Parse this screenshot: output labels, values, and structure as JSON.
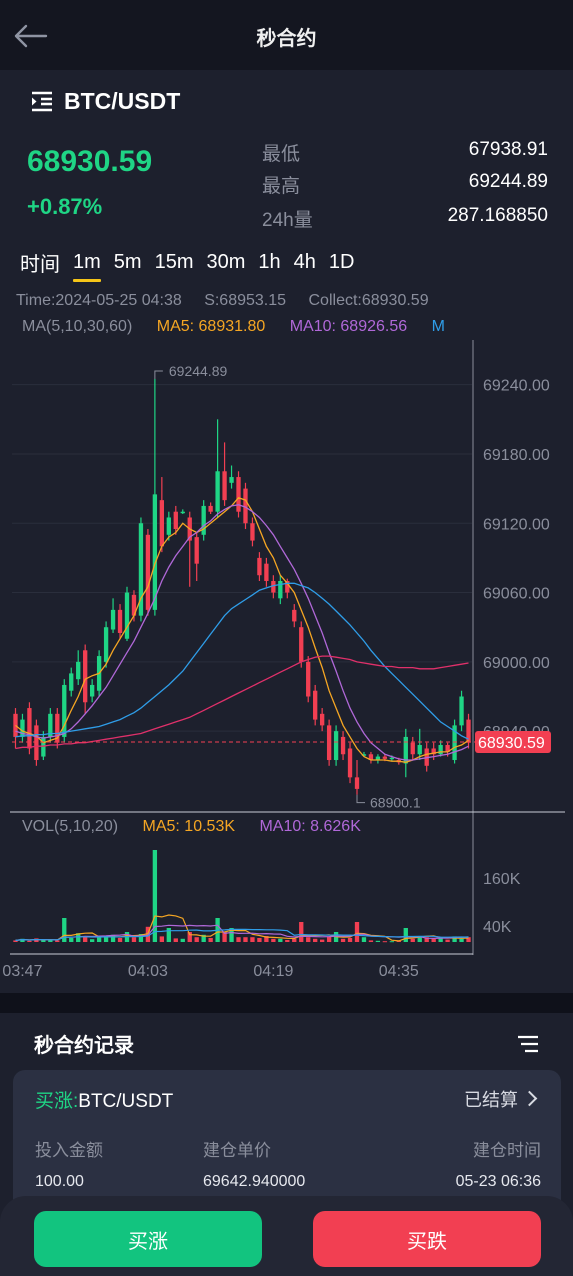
{
  "header": {
    "title": "秒合约"
  },
  "symbol": {
    "name": "BTC/USDT"
  },
  "ticker": {
    "price": "68930.59",
    "change": "+0.87%",
    "low_label": "最低",
    "low_value": "67938.91",
    "high_label": "最高",
    "high_value": "69244.89",
    "vol_label": "24h量",
    "vol_value": "287.168850"
  },
  "tabs": [
    "时间",
    "1m",
    "5m",
    "15m",
    "30m",
    "1h",
    "4h",
    "1D"
  ],
  "active_tab": "1m",
  "chart_info": {
    "time": "Time:2024-05-25 04:38",
    "start": "S:68953.15",
    "collect": "Collect:68930.59"
  },
  "ma_legend": {
    "label": "MA(5,10,30,60)",
    "ma5": "MA5: 68931.80",
    "ma10": "MA10: 68926.56",
    "ma30": "M"
  },
  "vol_legend": {
    "label": "VOL(5,10,20)",
    "ma5": "MA5: 10.53K",
    "ma10": "MA10: 8.626K"
  },
  "colors": {
    "up": "#1fd585",
    "down": "#f23f52",
    "ma5": "#f5a623",
    "ma10": "#b068d8",
    "ma30": "#2f9de8",
    "ma60": "#e0306a",
    "grid": "#2a2e3c"
  },
  "chart_data": {
    "type": "candlestick",
    "price_axis": {
      "ticks": [
        "69240.00",
        "69180.00",
        "69120.00",
        "69060.00",
        "69000.00",
        "68940.00"
      ],
      "range": [
        68870,
        69270
      ]
    },
    "current_price_label": "68930.59",
    "max_label": "69244.89",
    "min_label": "68900.1",
    "time_labels": [
      "03:47",
      "04:03",
      "04:19",
      "04:35"
    ],
    "vol_axis": {
      "ticks": [
        "160K",
        "40K"
      ],
      "range": [
        0,
        260
      ]
    },
    "candles": [
      [
        68955,
        68935,
        68925,
        68960,
        4
      ],
      [
        68935,
        68950,
        68930,
        68955,
        8
      ],
      [
        68960,
        68925,
        68920,
        68965,
        3
      ],
      [
        68945,
        68915,
        68910,
        68950,
        9
      ],
      [
        68918,
        68935,
        68915,
        68940,
        5
      ],
      [
        68935,
        68955,
        68930,
        68960,
        4
      ],
      [
        68955,
        68930,
        68925,
        68960,
        4
      ],
      [
        68935,
        68980,
        68930,
        68985,
        60
      ],
      [
        68975,
        68990,
        68970,
        68995,
        10
      ],
      [
        68985,
        69000,
        68980,
        69010,
        22
      ],
      [
        69010,
        68965,
        68955,
        69015,
        14
      ],
      [
        68970,
        68980,
        68965,
        68985,
        7
      ],
      [
        68975,
        69005,
        68970,
        69010,
        12
      ],
      [
        69000,
        69030,
        68995,
        69035,
        15
      ],
      [
        69028,
        69045,
        69025,
        69055,
        18
      ],
      [
        69045,
        69025,
        69020,
        69050,
        10
      ],
      [
        69020,
        69060,
        69018,
        69065,
        25
      ],
      [
        69058,
        69040,
        69035,
        69062,
        12
      ],
      [
        69040,
        69120,
        69035,
        69125,
        20
      ],
      [
        69110,
        69045,
        69040,
        69115,
        38
      ],
      [
        69045,
        69145,
        69040,
        69244.89,
        230
      ],
      [
        69140,
        69100,
        69095,
        69160,
        14
      ],
      [
        69110,
        69125,
        69105,
        69130,
        35
      ],
      [
        69130,
        69115,
        69110,
        69135,
        9
      ],
      [
        69130,
        69130,
        69128,
        69132,
        8
      ],
      [
        69125,
        69105,
        69065,
        69130,
        25
      ],
      [
        69108,
        69085,
        69070,
        69112,
        12
      ],
      [
        69110,
        69135,
        69105,
        69140,
        18
      ],
      [
        69135,
        69130,
        69128,
        69138,
        10
      ],
      [
        69130,
        69165,
        69125,
        69210,
        60
      ],
      [
        69165,
        69140,
        69135,
        69190,
        25
      ],
      [
        69155,
        69160,
        69150,
        69170,
        35
      ],
      [
        69160,
        69130,
        69125,
        69165,
        12
      ],
      [
        69150,
        69120,
        69115,
        69155,
        12
      ],
      [
        69120,
        69105,
        69100,
        69125,
        12
      ],
      [
        69090,
        69075,
        69070,
        69095,
        10
      ],
      [
        69085,
        69070,
        69065,
        69090,
        15
      ],
      [
        69070,
        69060,
        69055,
        69075,
        8
      ],
      [
        69055,
        69070,
        69050,
        69075,
        8
      ],
      [
        69070,
        69060,
        69055,
        69072,
        5
      ],
      [
        69045,
        69035,
        69030,
        69050,
        8
      ],
      [
        69030,
        69000,
        68995,
        69035,
        50
      ],
      [
        69000,
        68970,
        68965,
        69005,
        12
      ],
      [
        68975,
        68950,
        68945,
        68980,
        8
      ],
      [
        68955,
        68945,
        68940,
        68960,
        6
      ],
      [
        68945,
        68915,
        68910,
        68950,
        14
      ],
      [
        68915,
        68940,
        68910,
        68945,
        25
      ],
      [
        68935,
        68920,
        68915,
        68940,
        8
      ],
      [
        68925,
        68900,
        68895,
        68930,
        10
      ],
      [
        68900,
        68890,
        68885,
        68915,
        50
      ],
      [
        68920,
        68920,
        68918,
        68922,
        12
      ],
      [
        68920,
        68915,
        68912,
        68922,
        4
      ],
      [
        68915,
        68918,
        68912,
        68920,
        3
      ],
      [
        68918,
        68916,
        68914,
        68920,
        2
      ],
      [
        68916,
        68917,
        68914,
        68919,
        2
      ],
      [
        68915,
        68913,
        68911,
        68917,
        3
      ],
      [
        68912,
        68935,
        68900.1,
        68942,
        35
      ],
      [
        68930,
        68920,
        68915,
        68935,
        8
      ],
      [
        68920,
        68928,
        68915,
        68942,
        14
      ],
      [
        68925,
        68910,
        68905,
        68930,
        12
      ],
      [
        68925,
        68920,
        68915,
        68930,
        8
      ],
      [
        68920,
        68928,
        68918,
        68932,
        10
      ],
      [
        68928,
        68922,
        68918,
        68930,
        6
      ],
      [
        68915,
        68945,
        68912,
        68950,
        14
      ],
      [
        68945,
        68970,
        68940,
        68975,
        8
      ],
      [
        68950,
        68930,
        68925,
        68955,
        12
      ]
    ],
    "ma_series": {
      "ma5": [
        68945,
        68940,
        68938,
        68936,
        68930,
        68932,
        68934,
        68945,
        68958,
        68970,
        68985,
        68988,
        68990,
        68998,
        69010,
        69020,
        69030,
        69040,
        69055,
        69065,
        69085,
        69100,
        69108,
        69112,
        69120,
        69115,
        69112,
        69115,
        69120,
        69125,
        69130,
        69135,
        69142,
        69140,
        69130,
        69115,
        69100,
        69090,
        69075,
        69068,
        69060,
        69045,
        69030,
        69012,
        68995,
        68975,
        68960,
        68945,
        68935,
        68925,
        68918,
        68915,
        68915,
        68915,
        68914,
        68914,
        68913,
        68915,
        68918,
        68920,
        68921,
        68922,
        68922,
        68926,
        68928,
        68932
      ],
      "ma10": [
        68940,
        68938,
        68937,
        68935,
        68934,
        68935,
        68936,
        68938,
        68942,
        68948,
        68955,
        68962,
        68970,
        68978,
        68988,
        68998,
        69008,
        69018,
        69030,
        69042,
        69055,
        69070,
        69082,
        69092,
        69100,
        69108,
        69112,
        69118,
        69122,
        69128,
        69132,
        69135,
        69136,
        69134,
        69130,
        69125,
        69118,
        69110,
        69100,
        69090,
        69080,
        69068,
        69055,
        69040,
        69025,
        69008,
        68992,
        68975,
        68960,
        68948,
        68938,
        68930,
        68925,
        68920,
        68918,
        68916,
        68915,
        68915,
        68916,
        68917,
        68918,
        68919,
        68920,
        68922,
        68924,
        68927
      ],
      "ma30": [
        68935,
        68936,
        68936,
        68937,
        68937,
        68938,
        68938,
        68939,
        68940,
        68941,
        68942,
        68943,
        68944,
        68946,
        68948,
        68950,
        68953,
        68956,
        68960,
        68965,
        68970,
        68975,
        68980,
        68986,
        68992,
        69000,
        69008,
        69016,
        69024,
        69032,
        69040,
        69046,
        69050,
        69054,
        69058,
        69062,
        69064,
        69066,
        69067,
        69068,
        69068,
        69066,
        69064,
        69060,
        69055,
        69050,
        69044,
        69038,
        69032,
        69025,
        69018,
        69010,
        69003,
        68996,
        68990,
        68984,
        68978,
        68972,
        68966,
        68960,
        68954,
        68948,
        68944,
        68940,
        68936,
        68933
      ],
      "ma60": [
        68925,
        68926,
        68926,
        68927,
        68927,
        68928,
        68928,
        68929,
        68929,
        68930,
        68930,
        68931,
        68932,
        68933,
        68934,
        68935,
        68936,
        68937,
        68938,
        68940,
        68942,
        68944,
        68946,
        68948,
        68950,
        68952,
        68955,
        68958,
        68961,
        68964,
        68967,
        68970,
        68973,
        68976,
        68979,
        68982,
        68985,
        68988,
        68991,
        68994,
        68997,
        69000,
        69002,
        69004,
        69005,
        69005,
        69004,
        69003,
        69002,
        69000,
        68999,
        68998,
        68997,
        68996,
        68996,
        68995,
        68995,
        68995,
        68994,
        68994,
        68994,
        68995,
        68996,
        68997,
        68998,
        68999
      ]
    }
  },
  "records": {
    "title": "秒合约记录",
    "card": {
      "direction": "买涨:",
      "symbol": "BTC/USDT",
      "status": "已结算",
      "amount_label": "投入金额",
      "amount_value": "100.00",
      "price_label": "建仓单价",
      "price_value": "69642.940000",
      "time_label": "建仓时间",
      "time_value": "05-23 06:36"
    }
  },
  "actions": {
    "buy": "买涨",
    "sell": "买跌"
  }
}
